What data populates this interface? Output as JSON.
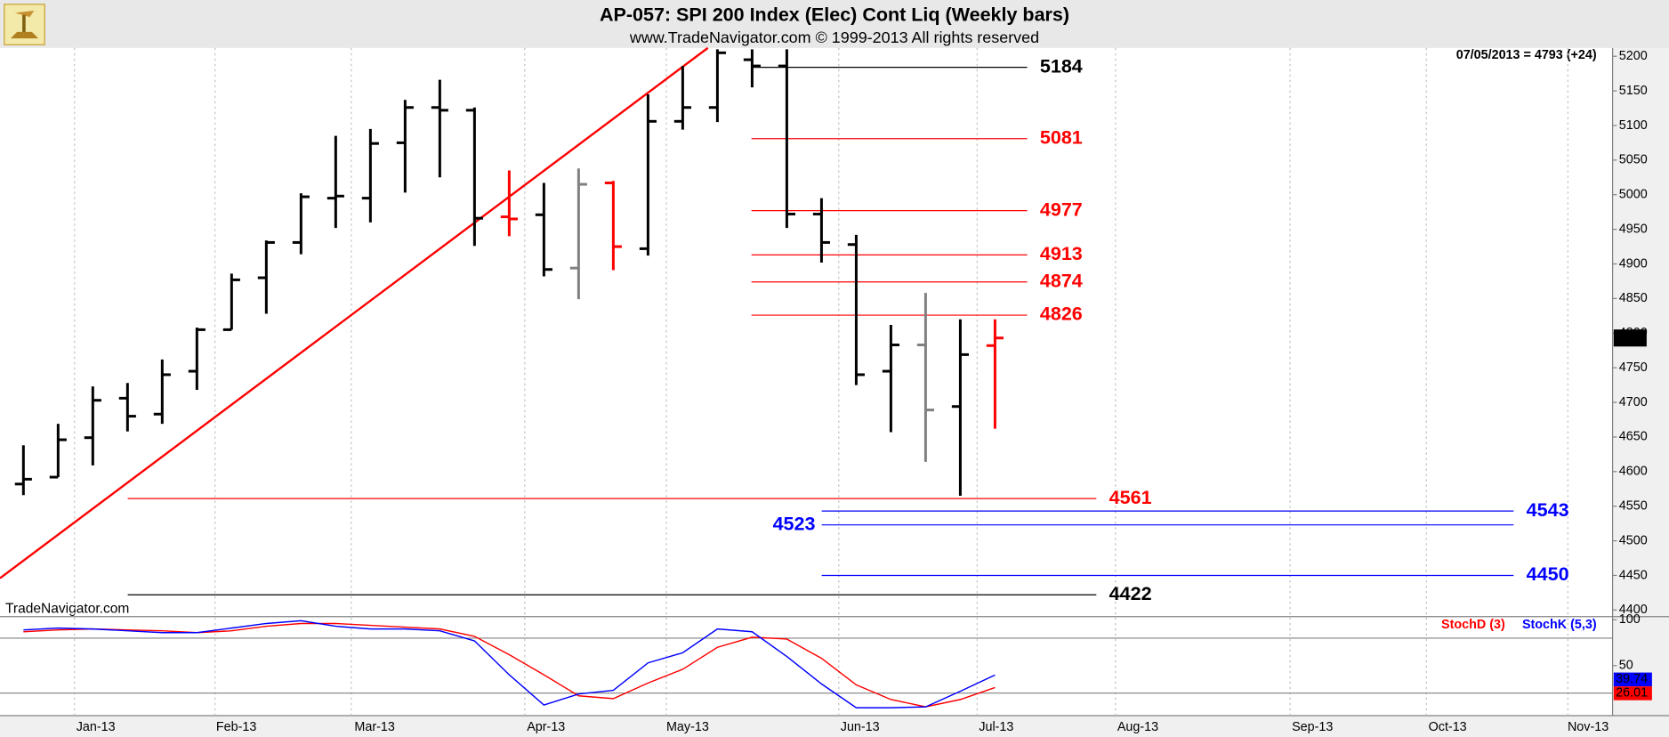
{
  "chart_data": [
    {
      "type": "ohlc",
      "title": "AP-057:  SPI 200 Index (Elec) Cont Liq  (Weekly bars)",
      "subtitle": "www.TradeNavigator.com © 1999-2013 All rights reserved",
      "watermark": "TradeNavigator.com",
      "annotation": "07/05/2013 = 4793 (+24)",
      "x_labels": [
        "Jan-13",
        "Feb-13",
        "Mar-13",
        "Apr-13",
        "May-13",
        "Jun-13",
        "Jul-13",
        "Aug-13",
        "Sep-13",
        "Oct-13",
        "Nov-13"
      ],
      "open": [
        4582,
        4592,
        4649,
        4706,
        4683,
        4745,
        4805,
        4880,
        4931,
        4995,
        4995,
        5075,
        5126,
        5122,
        4968,
        4971,
        4894,
        5017,
        4922,
        5106,
        5126,
        5195,
        5186,
        4972,
        4928,
        4745,
        4783,
        4694,
        4782
      ],
      "high": [
        4638,
        4669,
        4723,
        4728,
        4762,
        4808,
        4886,
        4934,
        5002,
        5085,
        5095,
        5137,
        5166,
        5126,
        5035,
        5017,
        5038,
        5020,
        5145,
        5186,
        5210,
        5210,
        5210,
        4995,
        4942,
        4812,
        4858,
        4820,
        4820
      ],
      "low": [
        4566,
        4592,
        4609,
        4658,
        4669,
        4718,
        4805,
        4828,
        4914,
        4952,
        4960,
        5003,
        5025,
        4926,
        4940,
        4882,
        4849,
        4891,
        4912,
        5094,
        5105,
        5155,
        4952,
        4902,
        4725,
        4657,
        4614,
        4565,
        4662
      ],
      "close": [
        4589,
        4646,
        4703,
        4680,
        4740,
        4805,
        4877,
        4931,
        4997,
        4998,
        5074,
        5126,
        5122,
        4966,
        4965,
        4892,
        5015,
        4925,
        5106,
        5126,
        5205,
        5186,
        4972,
        4931,
        4740,
        4783,
        4689,
        4769,
        4793
      ],
      "colors": [
        "#000000",
        "#000000",
        "#000000",
        "#000000",
        "#000000",
        "#000000",
        "#000000",
        "#000000",
        "#000000",
        "#000000",
        "#000000",
        "#000000",
        "#000000",
        "#000000",
        "#ff0000",
        "#000000",
        "#808080",
        "#ff0000",
        "#000000",
        "#000000",
        "#000000",
        "#000000",
        "#000000",
        "#000000",
        "#000000",
        "#000000",
        "#808080",
        "#000000",
        "#ff0000"
      ],
      "ylim": [
        4392,
        5212
      ],
      "yticks": [
        4400,
        4450,
        4500,
        4550,
        4600,
        4650,
        4700,
        4750,
        4800,
        4850,
        4900,
        4950,
        5000,
        5050,
        5100,
        5150,
        5200
      ],
      "levels": [
        {
          "value": 5184,
          "color": "#000000"
        },
        {
          "value": 5081,
          "color": "#ff0000"
        },
        {
          "value": 4977,
          "color": "#ff0000"
        },
        {
          "value": 4913,
          "color": "#ff0000"
        },
        {
          "value": 4874,
          "color": "#ff0000"
        },
        {
          "value": 4826,
          "color": "#ff0000"
        },
        {
          "value": 4561,
          "color": "#ff0000"
        },
        {
          "value": 4543,
          "color": "#0000ff"
        },
        {
          "value": 4523,
          "color": "#0000ff"
        },
        {
          "value": 4450,
          "color": "#0000ff"
        },
        {
          "value": 4422,
          "color": "#000000"
        }
      ],
      "trendline": {
        "values": [
          4446,
          5212
        ],
        "color": "#ff0000"
      }
    },
    {
      "type": "line",
      "series": [
        {
          "name": "StochD (3)",
          "color": "#ff0000",
          "values": [
            87,
            89,
            90,
            89,
            88,
            86,
            88,
            93,
            96,
            96,
            94,
            92,
            90,
            82,
            62,
            40,
            17,
            14,
            31,
            46,
            70,
            81,
            79,
            58,
            29,
            13,
            5,
            13,
            26.01
          ]
        },
        {
          "name": "StochK (5,3)",
          "color": "#0000ff",
          "values": [
            89,
            91,
            90,
            88,
            86,
            86,
            91,
            96,
            99,
            93,
            90,
            90,
            88,
            77,
            40,
            7,
            19,
            23,
            53,
            64,
            90,
            87,
            60,
            30,
            4,
            4,
            5,
            22,
            39.74
          ]
        }
      ],
      "ylim": [
        0,
        100
      ],
      "yticks": [
        50,
        100
      ],
      "guides": [
        20,
        80
      ]
    }
  ]
}
